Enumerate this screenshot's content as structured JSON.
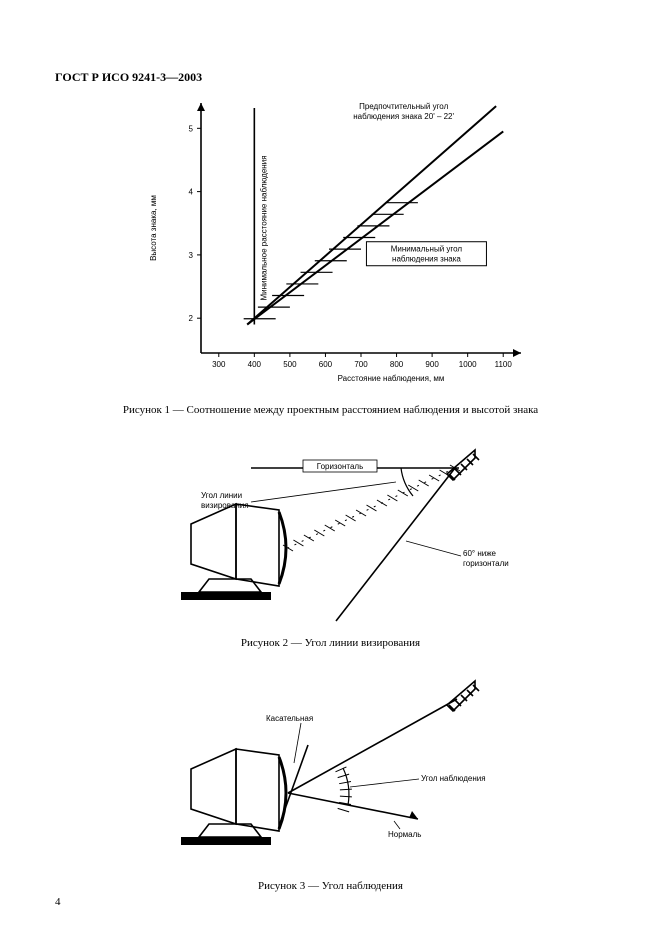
{
  "doc_header": "ГОСТ Р ИСО 9241-3—2003",
  "page_number": "4",
  "fig1": {
    "caption": "Рисунок 1 — Соотношение между проектным расстоянием наблюдения и высотой знака",
    "x_label": "Расстояние наблюдения, мм",
    "y_label": "Высота знака, мм",
    "vert_text": "Минимальное расстояние наблюдения",
    "top_label": "Предпочтительный угол\nнаблюдения знака 20' – 22'",
    "box_label": "Минимальный угол\nнаблюдения знака",
    "x_ticks": [
      300,
      400,
      500,
      600,
      700,
      800,
      900,
      1000,
      1100
    ],
    "y_ticks": [
      2,
      3,
      4,
      5
    ],
    "axis_color": "#000000",
    "line_color": "#000000",
    "bg": "#ffffff",
    "font_axis": 8,
    "font_label": 8,
    "x_range": [
      250,
      1150
    ],
    "y_range": [
      1.45,
      5.4
    ],
    "line_upper": {
      "x0": 380,
      "y0": 1.9,
      "x1": 1080,
      "y1": 5.35
    },
    "line_lower": {
      "x0": 380,
      "y0": 1.9,
      "x1": 1100,
      "y1": 4.95
    },
    "hatch_x": [
      400,
      440,
      480,
      520,
      560,
      600,
      640,
      680,
      720,
      760,
      800
    ],
    "line_width": 2,
    "hatch_width": 1.2
  },
  "fig2": {
    "caption": "Рисунок 2 — Угол линии визирования",
    "label_horiz": "Горизонталь",
    "label_sight": "Угол линии\nвизирования",
    "label_60": "60° ниже\nгоризонтали",
    "colors": {
      "stroke": "#000000",
      "fill_black": "#000000",
      "bg": "#ffffff"
    },
    "line_width_main": 1.6,
    "line_width_thick": 3
  },
  "fig3": {
    "caption": "Рисунок 3 — Угол наблюдения",
    "label_tangent": "Касательная",
    "label_viewang": "Угол наблюдения",
    "label_normal": "Нормаль",
    "colors": {
      "stroke": "#000000",
      "fill_black": "#000000",
      "bg": "#ffffff"
    },
    "line_width_main": 1.6,
    "line_width_thick": 3
  }
}
